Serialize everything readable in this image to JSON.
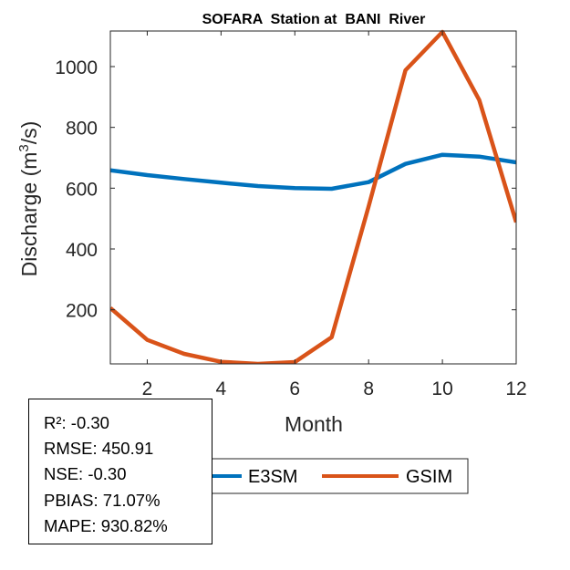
{
  "chart_data": {
    "type": "line",
    "title": "SOFARA  Station at  BANI  River",
    "xlabel": "Month",
    "ylabel": "Discharge (m³/s)",
    "ylabel_parts": {
      "pre": "Discharge (m",
      "sup": "3",
      "post": "/s)"
    },
    "xlim": [
      1,
      12
    ],
    "ylim": [
      22,
      1117
    ],
    "xticks": [
      2,
      4,
      6,
      8,
      10,
      12
    ],
    "yticks": [
      200,
      400,
      600,
      800,
      1000
    ],
    "grid": false,
    "legend_position": "bottom-center",
    "x": [
      1,
      2,
      3,
      4,
      5,
      6,
      7,
      8,
      9,
      10,
      11,
      12
    ],
    "series": [
      {
        "name": "E3SM",
        "color": "#0072BD",
        "values": [
          659,
          643,
          630,
          618,
          607,
          600,
          598,
          620,
          680,
          710,
          704,
          685
        ]
      },
      {
        "name": "GSIM",
        "color": "#D95319",
        "values": [
          206,
          101,
          55,
          29,
          22,
          28,
          110,
          540,
          988,
          1114,
          890,
          488
        ]
      }
    ]
  },
  "stats": [
    "R²: -0.30",
    "RMSE: 450.91",
    "NSE: -0.30",
    "PBIAS: 71.07%",
    "MAPE: 930.82%"
  ]
}
